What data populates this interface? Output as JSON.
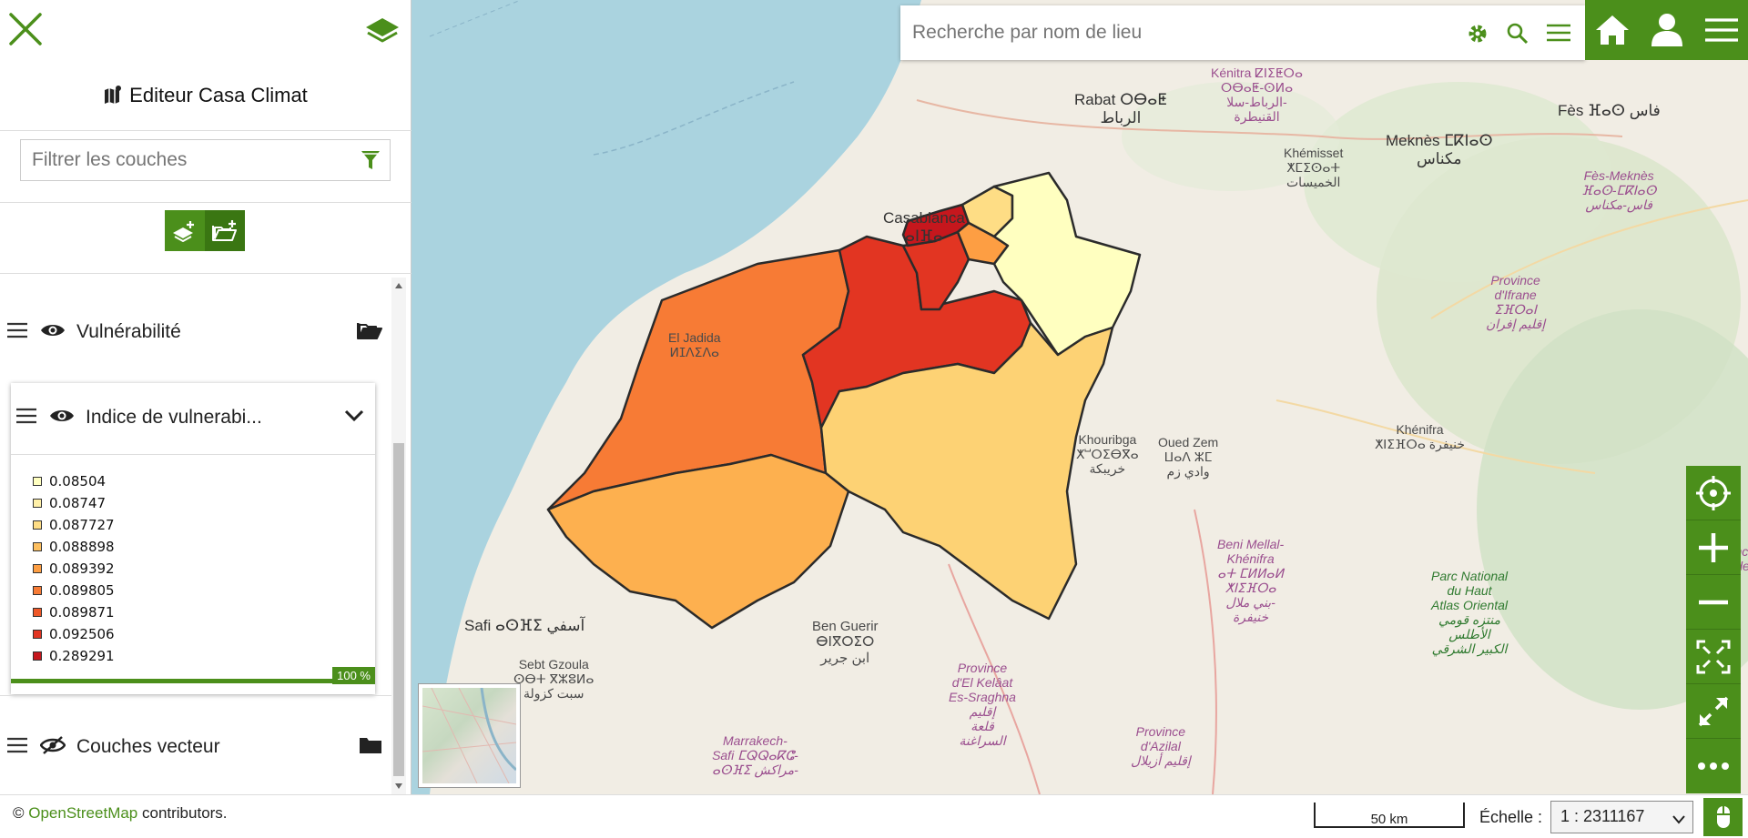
{
  "sidebar": {
    "title": "Editeur Casa Climat",
    "filter_placeholder": "Filtrer les couches",
    "layers": [
      {
        "label": "Vulnérabilité",
        "visible": true
      },
      {
        "label": "Indice de vulnerabi...",
        "visible": true,
        "expanded": true
      },
      {
        "label": "Couches vecteur",
        "visible": false
      }
    ],
    "legend": [
      {
        "value": "0.08504",
        "color": "#ffffc0"
      },
      {
        "value": "0.08747",
        "color": "#fff0a8"
      },
      {
        "value": "0.087727",
        "color": "#fedd85"
      },
      {
        "value": "0.088898",
        "color": "#fdbf5f"
      },
      {
        "value": "0.089392",
        "color": "#fd9e43"
      },
      {
        "value": "0.089805",
        "color": "#f77b35"
      },
      {
        "value": "0.089871",
        "color": "#ef5828"
      },
      {
        "value": "0.092506",
        "color": "#e23522"
      },
      {
        "value": "0.289291",
        "color": "#c6171d"
      }
    ],
    "progress_label": "100 %",
    "progress": 1.0
  },
  "search": {
    "placeholder": "Recherche par nom de lieu"
  },
  "map": {
    "labels": {
      "rabat": "Rabat ⵔⴱⴰⵟ\nالرباط",
      "kenitra": "Kénitra ⵇⵏⵉⵟⵔⴰ\nⵔⴱⴰⵟ-ⵙⵍⴰ\nالرباط-سلا-\nالقنيطرة",
      "khemisset": "Khémisset\nⵅⵎⵉⵙⴰⵜ\nالخميسات",
      "meknes": "Meknès ⵎⴽⵏⴰⵙ\nمكناس",
      "fes": "Fès ⴼⴰⵙ فاس",
      "fes_meknes": "Fès-Meknès\nⴼⴰⵙ-ⵎⴽⵏⴰⵙ\nفاس-مكناس",
      "ifrane": "Province\nd'Ifrane\nⵉⴼⵔⴰⵏ\nإقليم إفران",
      "casablanca": "Casablanca\nⴰⵏⴼⴰ",
      "eljadida": "El Jadida\nⵍⵊⴷⵉⴷⴰ",
      "khouribga": "Khouribga\nⵅⵯⵔⵉⴱⴳⴰ\nخريبكة",
      "ouedzem": "Oued Zem\nⵡⴰⴷ ⵣⵎ\nوادي زم",
      "khenifra": "Khénifra\nⵅⵏⵉⴼⵔⴰ خنيفرة",
      "benimellal": "Beni Mellal-\nKhénifra\nⴰⵜ ⵎⵍⵍⴰⵍ\nⵅⵏⵉⴼⵔⴰ\nبني ملال-\nخنيفرة",
      "parc": "Parc National\ndu Haut\nAtlas Oriental\nمنتزه قومي\nالأطلس\nالكبير الشرقي",
      "safi": "Safi ⴰⵙⴼⵉ آسفي",
      "sebtgzoula": "Sebt Gzoula\nⵙⴱⵜ ⴳⵣⵓⵍⴰ\nسبت كزولة",
      "benguerir": "Ben Guerir\nⴱⵏⴳⵔⵉⵔ\nابن جرير",
      "elkelaat": "Province\nd'El Kelâat\nEs-Sraghna\nإقليم\nقلعة\nالسراغنة",
      "azilal": "Province\nd'Azilal\nإقليم أزيلال",
      "marrakech": "Marrakech-\nSafi ⵎⵕⵕⴰⴽⵛ-\nⴰⵙⴼⵉ مراكش-",
      "provmid": "Provinc\nde Mide"
    }
  },
  "bottom": {
    "attribution_prefix": "© ",
    "attribution_link": "OpenStreetMap",
    "attribution_suffix": " contributors.",
    "scalebar": "50 km",
    "scale_label": "Échelle :",
    "scale_value": "1 : 2311167"
  },
  "colors": {
    "accent": "#4b8f1b",
    "sea": "#aad3df"
  }
}
